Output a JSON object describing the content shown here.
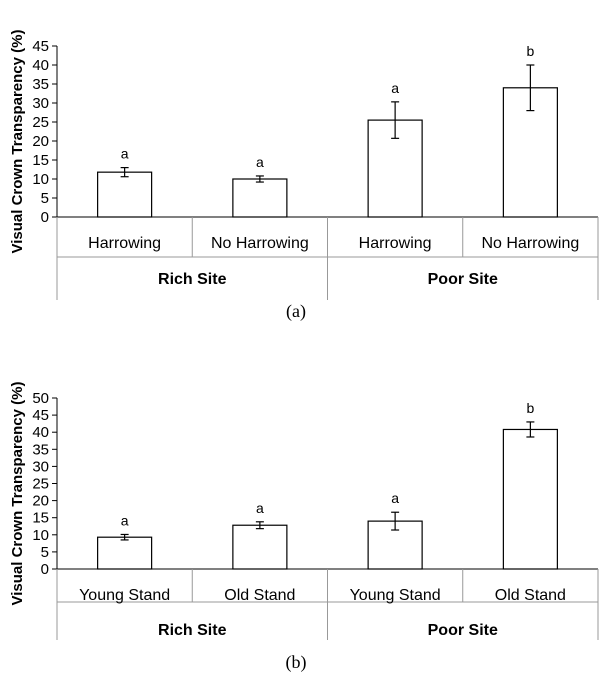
{
  "chart_data": [
    {
      "type": "bar",
      "panel_label": "(a)",
      "ylabel": "Visual Crown Transparency  (%)",
      "ylim": [
        0,
        45
      ],
      "yticks": [
        0,
        5,
        10,
        15,
        20,
        25,
        30,
        35,
        40,
        45
      ],
      "grid": false,
      "groups": [
        {
          "label": "Rich Site",
          "categories": [
            "Harrowing",
            "No Harrowing"
          ]
        },
        {
          "label": "Poor Site",
          "categories": [
            "Harrowing",
            "No Harrowing"
          ]
        }
      ],
      "categories": [
        "Harrowing",
        "No Harrowing",
        "Harrowing",
        "No Harrowing"
      ],
      "values": [
        11.8,
        10.0,
        25.5,
        34.0
      ],
      "errors": [
        1.2,
        0.8,
        4.8,
        6.0
      ],
      "letters": [
        "a",
        "a",
        "a",
        "b"
      ]
    },
    {
      "type": "bar",
      "panel_label": "(b)",
      "ylabel": "Visual Crown Transparency  (%)",
      "ylim": [
        0,
        50
      ],
      "yticks": [
        0,
        5,
        10,
        15,
        20,
        25,
        30,
        35,
        40,
        45,
        50
      ],
      "grid": false,
      "groups": [
        {
          "label": "Rich Site",
          "categories": [
            "Young Stand",
            "Old Stand"
          ]
        },
        {
          "label": "Poor Site",
          "categories": [
            "Young Stand",
            "Old Stand"
          ]
        }
      ],
      "categories": [
        "Young Stand",
        "Old Stand",
        "Young Stand",
        "Old Stand"
      ],
      "values": [
        9.3,
        12.8,
        14.0,
        40.8
      ],
      "errors": [
        0.8,
        1.0,
        2.6,
        2.2
      ],
      "letters": [
        "a",
        "a",
        "a",
        "b"
      ]
    }
  ]
}
